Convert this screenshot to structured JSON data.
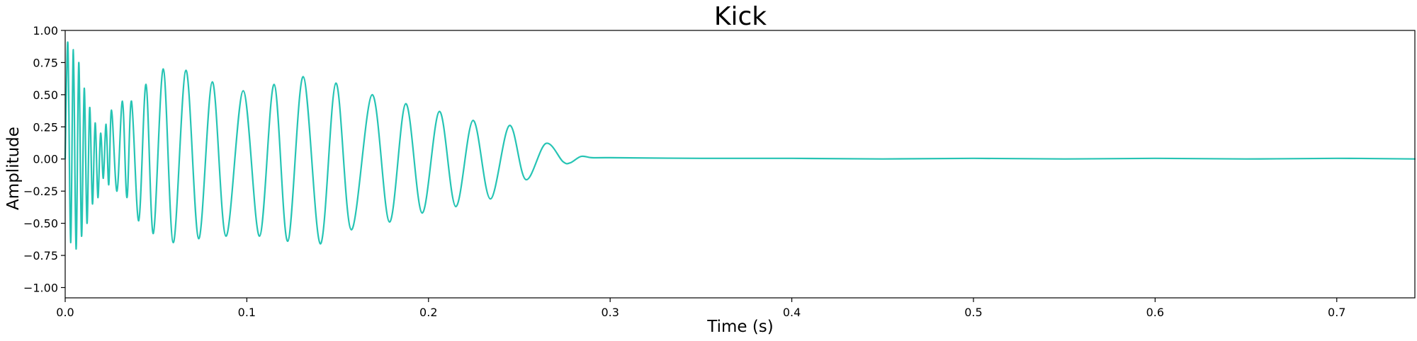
{
  "chart_data": {
    "type": "line",
    "title": "Kick",
    "xlabel": "Time (s)",
    "ylabel": "Amplitude",
    "xlim": [
      0,
      0.743
    ],
    "ylim": [
      -1.08,
      1.0
    ],
    "xticks": [
      0.0,
      0.1,
      0.2,
      0.3,
      0.4,
      0.5,
      0.6,
      0.7
    ],
    "xtick_labels": [
      "0.0",
      "0.1",
      "0.2",
      "0.3",
      "0.4",
      "0.5",
      "0.6",
      "0.7"
    ],
    "yticks": [
      1.0,
      0.75,
      0.5,
      0.25,
      0.0,
      -0.25,
      -0.5,
      -0.75,
      -1.0
    ],
    "ytick_labels": [
      "1.00",
      "0.75",
      "0.50",
      "0.25",
      "0.00",
      "−0.25",
      "−0.50",
      "−0.75",
      "−1.00"
    ],
    "grid": false,
    "line_color": "#26c4b4",
    "series": [
      {
        "x": [
          0.0,
          0.0015,
          0.003,
          0.0045,
          0.006,
          0.0075,
          0.009,
          0.0105,
          0.012,
          0.0135,
          0.015,
          0.0165,
          0.018,
          0.0195,
          0.021,
          0.0225,
          0.024,
          0.0255,
          0.0285,
          0.0315,
          0.034,
          0.0365,
          0.0405,
          0.0445,
          0.0485,
          0.054,
          0.0595,
          0.0665,
          0.0735,
          0.081,
          0.0885,
          0.098,
          0.107,
          0.115,
          0.1225,
          0.131,
          0.1405,
          0.149,
          0.1575,
          0.169,
          0.1785,
          0.1875,
          0.1965,
          0.206,
          0.215,
          0.2245,
          0.234,
          0.2445,
          0.2535,
          0.2645,
          0.274,
          0.278,
          0.284,
          0.29,
          0.3,
          0.35,
          0.4,
          0.45,
          0.5,
          0.55,
          0.6,
          0.65,
          0.7,
          0.743
        ],
        "y": [
          0.0,
          0.9,
          -0.65,
          0.85,
          -0.7,
          0.75,
          -0.6,
          0.55,
          -0.5,
          0.4,
          -0.35,
          0.28,
          -0.3,
          0.2,
          -0.15,
          0.27,
          -0.2,
          0.38,
          -0.25,
          0.45,
          -0.3,
          0.45,
          -0.48,
          0.58,
          -0.58,
          0.7,
          -0.65,
          0.69,
          -0.62,
          0.6,
          -0.6,
          0.53,
          -0.6,
          0.58,
          -0.64,
          0.64,
          -0.66,
          0.59,
          -0.55,
          0.5,
          -0.49,
          0.43,
          -0.42,
          0.37,
          -0.37,
          0.3,
          -0.31,
          0.26,
          -0.16,
          0.12,
          -0.02,
          -0.03,
          0.02,
          0.01,
          0.01,
          0.005,
          0.005,
          0.0,
          0.005,
          0.0,
          0.005,
          0.0,
          0.005,
          0.0
        ]
      }
    ]
  }
}
